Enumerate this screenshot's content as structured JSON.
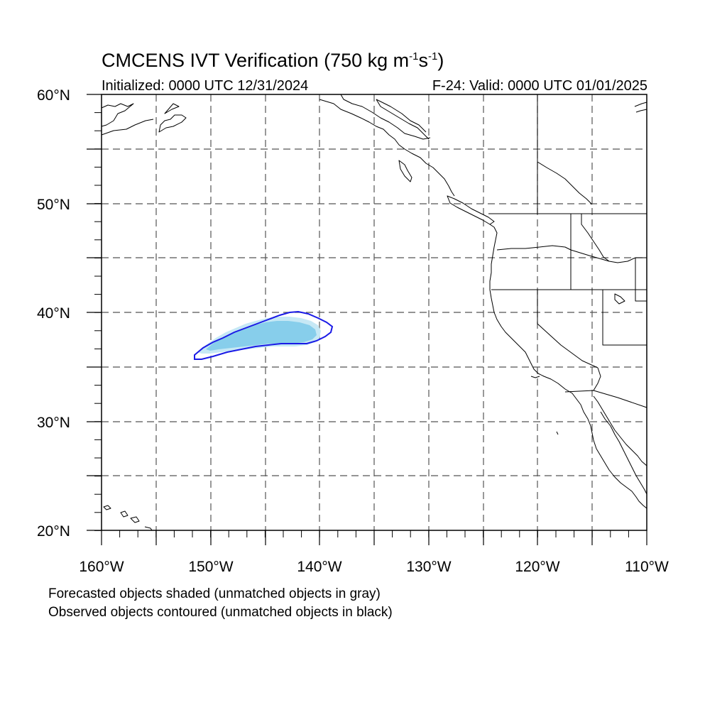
{
  "title": {
    "model": "CMCENS IVT Verification (750 kg m",
    "exp1": "-1",
    "mid": "s",
    "exp2": "-1",
    "close": ")"
  },
  "initialized": "Initialized: 0000 UTC 12/31/2024",
  "valid": "F-24: Valid: 0000 UTC 01/01/2025",
  "lat_labels": [
    "60°N",
    "50°N",
    "40°N",
    "30°N",
    "20°N"
  ],
  "lon_labels": [
    "160°W",
    "150°W",
    "140°W",
    "130°W",
    "120°W",
    "110°W"
  ],
  "notes": {
    "line1": "Forecasted objects shaded (unmatched objects in gray)",
    "line2": "Observed objects contoured (unmatched objects in black)"
  },
  "colors": {
    "forecast_fill": "#87ceeb",
    "forecast_edge": "#c6e8f5",
    "observed_contour": "#1a1ae6",
    "grid": "#555555",
    "coast": "#000000"
  },
  "map": {
    "projection": "cylindrical equidistant",
    "lon_range": [
      -160,
      -110
    ],
    "lat_range": [
      20,
      60
    ]
  }
}
